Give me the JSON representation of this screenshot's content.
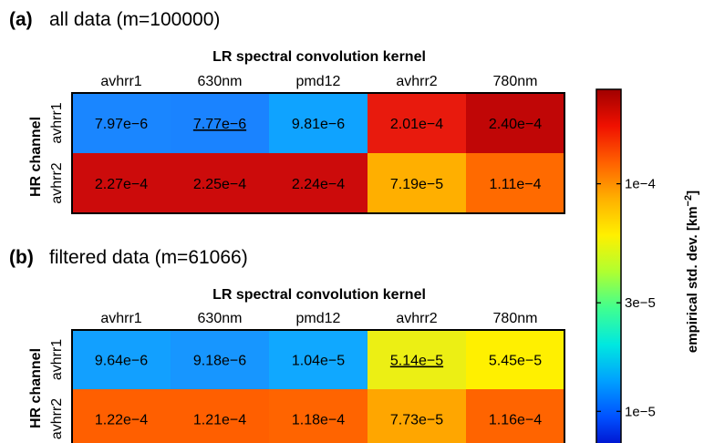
{
  "chart_data": [
    {
      "type": "heatmap",
      "panel_label": "(a)",
      "title": "all data (m=100000)",
      "xlabel": "LR spectral convolution kernel",
      "ylabel": "HR channel",
      "columns": [
        "avhrr1",
        "630nm",
        "pmd12",
        "avhrr2",
        "780nm"
      ],
      "rows": [
        "avhrr1",
        "avhrr2"
      ],
      "cells": [
        [
          {
            "label": "7.97e−6",
            "value": 7.97e-06,
            "color": "#1a86ff",
            "underline": false
          },
          {
            "label": "7.77e−6",
            "value": 7.77e-06,
            "color": "#1a83ff",
            "underline": true
          },
          {
            "label": "9.81e−6",
            "value": 9.81e-06,
            "color": "#0fa3ff",
            "underline": false
          },
          {
            "label": "2.01e−4",
            "value": 0.000201,
            "color": "#e81a0d",
            "underline": false
          },
          {
            "label": "2.40e−4",
            "value": 0.00024,
            "color": "#c00606",
            "underline": false
          }
        ],
        [
          {
            "label": "2.27e−4",
            "value": 0.000227,
            "color": "#cc0b0b",
            "underline": false
          },
          {
            "label": "2.25e−4",
            "value": 0.000225,
            "color": "#cc0b0b",
            "underline": false
          },
          {
            "label": "2.24e−4",
            "value": 0.000224,
            "color": "#cc0b0b",
            "underline": false
          },
          {
            "label": "7.19e−5",
            "value": 7.19e-05,
            "color": "#ffaf00",
            "underline": false
          },
          {
            "label": "1.11e−4",
            "value": 0.000111,
            "color": "#ff6a00",
            "underline": false
          }
        ]
      ]
    },
    {
      "type": "heatmap",
      "panel_label": "(b)",
      "title": "filtered data (m=61066)",
      "xlabel": "LR spectral convolution kernel",
      "ylabel": "HR channel",
      "columns": [
        "avhrr1",
        "630nm",
        "pmd12",
        "avhrr2",
        "780nm"
      ],
      "rows": [
        "avhrr1",
        "avhrr2"
      ],
      "cells": [
        [
          {
            "label": "9.64e−6",
            "value": 9.64e-06,
            "color": "#12a0ff",
            "underline": false
          },
          {
            "label": "9.18e−6",
            "value": 9.18e-06,
            "color": "#1796ff",
            "underline": false
          },
          {
            "label": "1.04e−5",
            "value": 1.04e-05,
            "color": "#10a8ff",
            "underline": false
          },
          {
            "label": "5.14e−5",
            "value": 5.14e-05,
            "color": "#ecef14",
            "underline": true
          },
          {
            "label": "5.45e−5",
            "value": 5.45e-05,
            "color": "#fff000",
            "underline": false
          }
        ],
        [
          {
            "label": "1.22e−4",
            "value": 0.000122,
            "color": "#ff5f00",
            "underline": false
          },
          {
            "label": "1.21e−4",
            "value": 0.000121,
            "color": "#ff5f00",
            "underline": false
          },
          {
            "label": "1.18e−4",
            "value": 0.000118,
            "color": "#ff6400",
            "underline": false
          },
          {
            "label": "7.73e−5",
            "value": 7.73e-05,
            "color": "#ffa600",
            "underline": false
          },
          {
            "label": "1.16e−4",
            "value": 0.000116,
            "color": "#ff6400",
            "underline": false
          }
        ]
      ]
    }
  ],
  "colorbar": {
    "label": "empirical std. dev. [km",
    "label_superscript": "−2",
    "label_close": "]",
    "ticks": [
      "1e−4",
      "3e−5",
      "1e−5"
    ],
    "tick_values": [
      0.0001,
      3e-05,
      1e-05
    ],
    "scale": "log",
    "colormap": [
      "#0000c0",
      "#0050ff",
      "#00a0ff",
      "#00e8e0",
      "#40ff90",
      "#b0ff30",
      "#fff000",
      "#ffb000",
      "#ff6000",
      "#f01000",
      "#a00000"
    ]
  }
}
